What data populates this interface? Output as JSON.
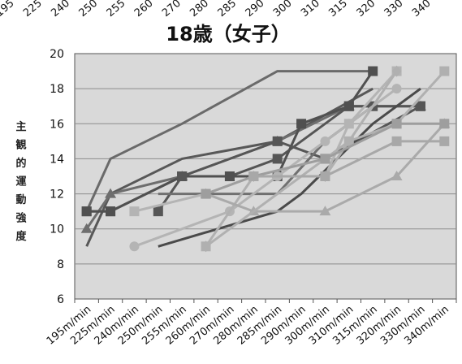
{
  "chart_data": {
    "type": "line",
    "title": "18歳（女子）",
    "ylabel": "主観的運動強度",
    "xlabel": "",
    "ylim": [
      6,
      20
    ],
    "yticks": [
      6,
      8,
      10,
      12,
      14,
      16,
      18,
      20
    ],
    "categories": [
      "195m/min",
      "225m/min",
      "240m/min",
      "250m/min",
      "255m/min",
      "260m/min",
      "270m/min",
      "280m/min",
      "285m/min",
      "290m/min",
      "300m/min",
      "310m/min",
      "315m/min",
      "320m/min",
      "330m/min",
      "340m/min"
    ],
    "top_cut_labels": [
      "195",
      "225",
      "240",
      "250",
      "255",
      "260",
      "270",
      "280",
      "285",
      "290",
      "300",
      "310",
      "315",
      "320",
      "330",
      "340"
    ],
    "grid": true,
    "legend": "none",
    "colors": {
      "plot_bg": "#d9d9d9",
      "grid": "#8c8c8c",
      "axis": "#555555"
    },
    "series": [
      {
        "values": [
          11,
          14,
          null,
          null,
          16,
          null,
          null,
          null,
          19,
          null,
          null,
          null,
          19,
          null,
          null,
          null
        ],
        "color": "#6a6a6a",
        "marker": "none"
      },
      {
        "values": [
          9,
          12,
          null,
          null,
          14,
          null,
          null,
          null,
          15,
          null,
          null,
          null,
          18,
          null,
          null,
          null
        ],
        "color": "#585858",
        "marker": "none"
      },
      {
        "values": [
          10,
          12,
          null,
          null,
          13,
          null,
          null,
          null,
          15,
          null,
          null,
          17,
          null,
          null,
          17,
          null
        ],
        "color": "#6e6e6e",
        "marker": "triangle"
      },
      {
        "values": [
          11,
          11,
          null,
          null,
          13,
          null,
          13,
          null,
          14,
          null,
          null,
          17,
          17,
          null,
          17,
          null
        ],
        "color": "#555555",
        "marker": "square"
      },
      {
        "values": [
          11,
          11,
          null,
          null,
          13,
          null,
          13,
          null,
          13,
          16,
          null,
          17,
          19,
          null,
          null,
          null
        ],
        "color": "#505050",
        "marker": "square"
      },
      {
        "values": [
          null,
          null,
          null,
          11,
          13,
          null,
          null,
          null,
          15,
          null,
          14,
          null,
          null,
          null,
          17,
          null
        ],
        "color": "#565656",
        "marker": "square"
      },
      {
        "values": [
          null,
          null,
          null,
          12,
          12,
          null,
          null,
          null,
          12,
          null,
          15,
          null,
          17,
          null,
          null,
          null
        ],
        "color": "#707070",
        "marker": "none"
      },
      {
        "values": [
          null,
          null,
          null,
          9,
          null,
          null,
          null,
          null,
          11,
          12,
          null,
          null,
          16,
          null,
          18,
          null
        ],
        "color": "#4a4a4a",
        "marker": "none"
      },
      {
        "values": [
          null,
          null,
          11,
          null,
          null,
          12,
          null,
          13,
          null,
          null,
          13,
          16,
          null,
          19,
          null,
          null
        ],
        "color": "#b4b4b4",
        "marker": "square"
      },
      {
        "values": [
          null,
          null,
          9,
          null,
          null,
          null,
          11,
          null,
          13,
          null,
          15,
          16,
          null,
          18,
          null,
          null
        ],
        "color": "#b4b4b4",
        "marker": "circle"
      },
      {
        "values": [
          null,
          null,
          null,
          null,
          null,
          9,
          null,
          13,
          null,
          null,
          13,
          null,
          null,
          19,
          null,
          null
        ],
        "color": "#b0b0b0",
        "marker": "diamond"
      },
      {
        "values": [
          null,
          null,
          null,
          null,
          null,
          12,
          null,
          11,
          null,
          null,
          11,
          null,
          null,
          13,
          null,
          16
        ],
        "color": "#aaaaaa",
        "marker": "triangle"
      },
      {
        "values": [
          null,
          null,
          null,
          null,
          null,
          9,
          null,
          null,
          null,
          null,
          null,
          15,
          null,
          16,
          null,
          19
        ],
        "color": "#b0b0b0",
        "marker": "square"
      },
      {
        "values": [
          null,
          null,
          null,
          null,
          null,
          12,
          null,
          13,
          null,
          null,
          14,
          null,
          null,
          16,
          null,
          16
        ],
        "color": "#9e9e9e",
        "marker": "square"
      },
      {
        "values": [
          null,
          null,
          null,
          null,
          null,
          null,
          null,
          13,
          null,
          null,
          13,
          null,
          null,
          15,
          null,
          15
        ],
        "color": "#a8a8a8",
        "marker": "square"
      }
    ]
  }
}
